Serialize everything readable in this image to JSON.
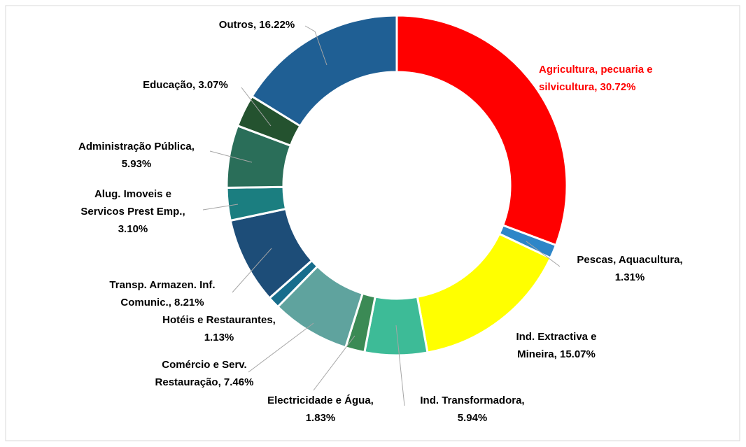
{
  "chart_data": {
    "type": "donut",
    "values": [
      30.72,
      1.31,
      15.07,
      5.94,
      1.83,
      7.46,
      1.13,
      8.21,
      3.1,
      5.93,
      3.07,
      16.22
    ],
    "value_labels": [
      [
        "Agricultura, pecuaria e",
        "silvicultura, 30.72%"
      ],
      [
        "Pescas, Aquacultura,",
        "1.31%"
      ],
      [
        "Ind. Extractiva e",
        "Mineira, 15.07%"
      ],
      [
        "Ind. Transformadora,",
        "5.94%"
      ],
      [
        "Electricidade e Água,",
        "1.83%"
      ],
      [
        "Comércio e Serv.",
        "Restauração, 7.46%"
      ],
      [
        "Hotéis e Restaurantes,",
        "1.13%"
      ],
      [
        "Transp. Armazen. Inf.",
        "Comunic., 8.21%"
      ],
      [
        "Alug. Imoveis e",
        "Servicos Prest Emp.,",
        "3.10%"
      ],
      [
        "Administração Pública,",
        "5.93%"
      ],
      [
        "Educação, 3.07%"
      ],
      [
        "Outros, 16.22%"
      ]
    ],
    "colors": [
      "#ff0000",
      "#2e86c8",
      "#ffff00",
      "#3dbb97",
      "#3b8a55",
      "#5fa39e",
      "#176d8c",
      "#1d4d78",
      "#1b7e80",
      "#2a6e59",
      "#24522f",
      "#1f5f94"
    ],
    "label_colors": [
      "#ff0000",
      "#000000",
      "#000000",
      "#000000",
      "#000000",
      "#000000",
      "#000000",
      "#000000",
      "#000000",
      "#000000",
      "#000000",
      "#000000"
    ]
  }
}
